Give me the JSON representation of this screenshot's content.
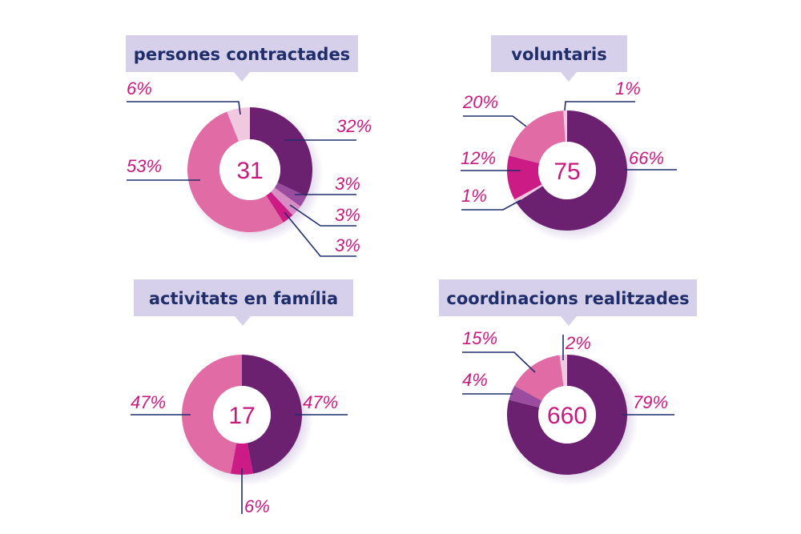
{
  "colors": {
    "dark_purple": "#6b2070",
    "medium_purple": "#9b4c9e",
    "light_pink": "#d98cc4",
    "magenta": "#cc1b85",
    "pink": "#e06ba5",
    "pale_pink": "#f0c8e0",
    "title_bg": "#d6d0ea",
    "title_text": "#1f2e6b",
    "label_text": "#c8197f",
    "leader_line": "#1f2e6b"
  },
  "chart_data": [
    {
      "type": "pie",
      "variant": "donut",
      "title": "persones contractades",
      "center_label": "31",
      "slices": [
        {
          "label": "32%",
          "value": 32,
          "color": "dark_purple"
        },
        {
          "label": "3%",
          "value": 3,
          "color": "medium_purple"
        },
        {
          "label": "3%",
          "value": 3,
          "color": "light_pink"
        },
        {
          "label": "3%",
          "value": 3,
          "color": "magenta"
        },
        {
          "label": "53%",
          "value": 53,
          "color": "pink"
        },
        {
          "label": "6%",
          "value": 6,
          "color": "pale_pink"
        }
      ]
    },
    {
      "type": "pie",
      "variant": "donut",
      "title": "voluntaris",
      "center_label": "75",
      "slices": [
        {
          "label": "66%",
          "value": 66,
          "color": "dark_purple"
        },
        {
          "label": "1%",
          "value": 1,
          "color": "pale_pink"
        },
        {
          "label": "12%",
          "value": 12,
          "color": "magenta"
        },
        {
          "label": "20%",
          "value": 20,
          "color": "pink"
        },
        {
          "label": "1%",
          "value": 1,
          "color": "pale_pink"
        }
      ]
    },
    {
      "type": "pie",
      "variant": "donut",
      "title": "activitats en família",
      "center_label": "17",
      "slices": [
        {
          "label": "47%",
          "value": 47,
          "color": "dark_purple"
        },
        {
          "label": "6%",
          "value": 6,
          "color": "magenta"
        },
        {
          "label": "47%",
          "value": 47,
          "color": "pink"
        }
      ]
    },
    {
      "type": "pie",
      "variant": "donut",
      "title": "coordinacions realitzades",
      "center_label": "660",
      "slices": [
        {
          "label": "79%",
          "value": 79,
          "color": "dark_purple"
        },
        {
          "label": "4%",
          "value": 4,
          "color": "medium_purple"
        },
        {
          "label": "15%",
          "value": 15,
          "color": "pink"
        },
        {
          "label": "2%",
          "value": 2,
          "color": "pale_pink"
        }
      ]
    }
  ]
}
